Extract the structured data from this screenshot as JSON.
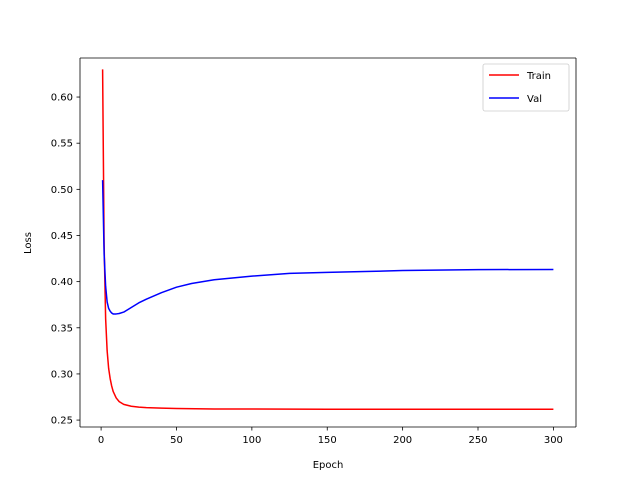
{
  "chart_data": {
    "type": "line",
    "title": "",
    "xlabel": "Epoch",
    "ylabel": "Loss",
    "xlim": [
      -14,
      315
    ],
    "ylim": [
      0.2425,
      0.6423
    ],
    "xticks": [
      0,
      50,
      100,
      150,
      200,
      250,
      300
    ],
    "yticks": [
      0.25,
      0.3,
      0.35,
      0.4,
      0.45,
      0.5,
      0.55,
      0.6
    ],
    "xtick_labels": [
      "0",
      "50",
      "100",
      "150",
      "200",
      "250",
      "300"
    ],
    "ytick_labels": [
      "0.25",
      "0.30",
      "0.35",
      "0.40",
      "0.45",
      "0.50",
      "0.55",
      "0.60"
    ],
    "grid": false,
    "legend_position": "top-right",
    "series": [
      {
        "name": "Train",
        "color": "#ff0000",
        "x": [
          1,
          2,
          3,
          4,
          5,
          6,
          7,
          8,
          10,
          12,
          15,
          20,
          25,
          30,
          40,
          50,
          75,
          100,
          150,
          200,
          250,
          300
        ],
        "y": [
          0.63,
          0.44,
          0.36,
          0.325,
          0.306,
          0.295,
          0.287,
          0.281,
          0.274,
          0.27,
          0.267,
          0.265,
          0.264,
          0.2635,
          0.263,
          0.2625,
          0.262,
          0.262,
          0.2618,
          0.2617,
          0.2617,
          0.2617
        ]
      },
      {
        "name": "Val",
        "color": "#0000ff",
        "x": [
          1,
          2,
          3,
          4,
          5,
          6,
          7,
          8,
          10,
          12,
          15,
          20,
          25,
          30,
          40,
          50,
          60,
          75,
          100,
          125,
          150,
          175,
          200,
          250,
          300
        ],
        "y": [
          0.51,
          0.43,
          0.395,
          0.378,
          0.371,
          0.368,
          0.366,
          0.365,
          0.365,
          0.3655,
          0.367,
          0.372,
          0.377,
          0.381,
          0.388,
          0.394,
          0.398,
          0.402,
          0.406,
          0.409,
          0.41,
          0.411,
          0.412,
          0.413,
          0.4132
        ]
      }
    ]
  }
}
